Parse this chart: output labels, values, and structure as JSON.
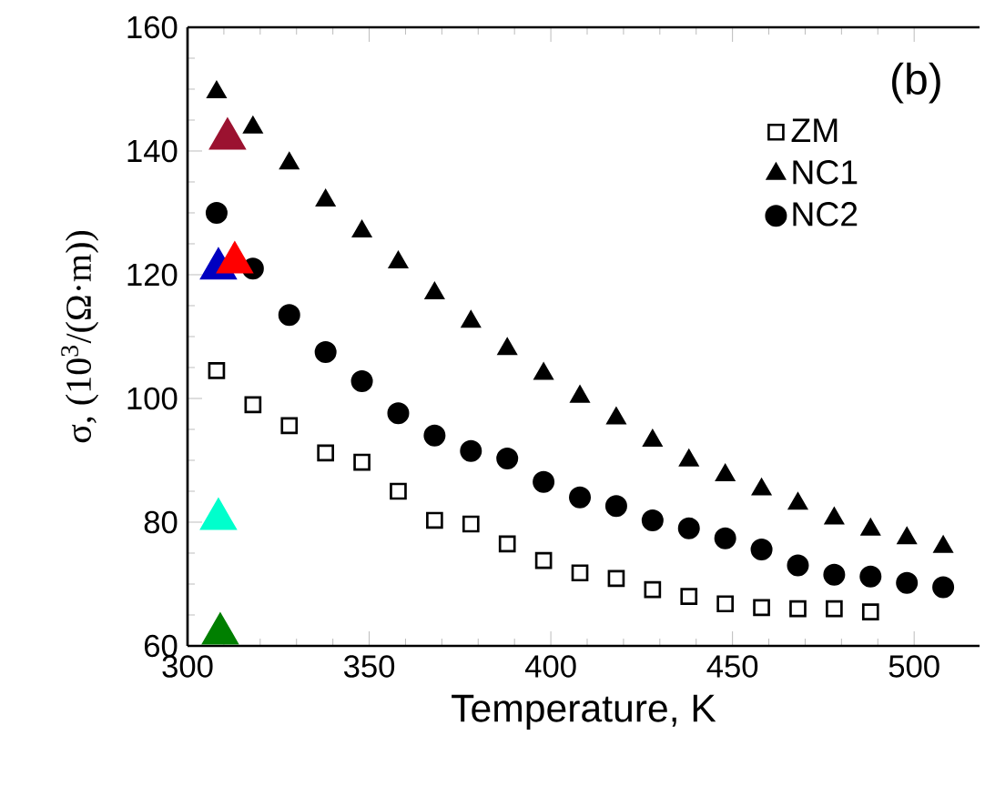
{
  "chart_data": {
    "type": "scatter",
    "xlabel": "Temperature,    K",
    "ylabel": "σ,   (10$^{3}$/(Ω·m))",
    "xlim": [
      300,
      518
    ],
    "ylim": [
      60,
      160
    ],
    "xticks": [
      300,
      350,
      400,
      450,
      500
    ],
    "yticks": [
      60,
      80,
      100,
      120,
      140,
      160
    ],
    "legend": "top right",
    "grid": false,
    "annotations": [
      "(b)"
    ],
    "series": [
      {
        "name": "ZM",
        "color": "#000000",
        "marker": "square",
        "x": [
          308,
          318,
          328,
          338,
          348,
          358,
          368,
          378,
          388,
          398,
          408,
          418,
          428,
          438,
          448,
          458,
          468,
          478,
          488
        ],
        "values": [
          104.5,
          99,
          95.6,
          91.2,
          89.7,
          85,
          80.3,
          79.7,
          76.5,
          73.8,
          71.8,
          70.9,
          69.1,
          68,
          66.8,
          66.2,
          66,
          66,
          65.5
        ]
      },
      {
        "name": "NC1",
        "color": "#000000",
        "marker": "triangle",
        "x": [
          308,
          318,
          328,
          338,
          348,
          358,
          368,
          378,
          388,
          398,
          408,
          418,
          428,
          438,
          448,
          458,
          468,
          478,
          488,
          498,
          508
        ],
        "values": [
          149.5,
          143.8,
          138,
          132,
          127,
          122,
          117,
          112.4,
          108,
          104,
          100.3,
          96.8,
          93.2,
          90,
          87.6,
          85.3,
          83,
          80.6,
          78.8,
          77.4,
          76
        ]
      },
      {
        "name": "NC2",
        "color": "#000000",
        "marker": "circle",
        "x": [
          308,
          318,
          328,
          338,
          348,
          358,
          368,
          378,
          388,
          398,
          408,
          418,
          428,
          438,
          448,
          458,
          468,
          478,
          488,
          498,
          508
        ],
        "values": [
          130,
          121,
          113.5,
          107.5,
          102.8,
          97.6,
          94,
          91.5,
          90.3,
          86.5,
          84,
          82.6,
          80.3,
          79,
          77.4,
          75.6,
          73,
          71.5,
          71.2,
          70.2,
          69.5
        ]
      },
      {
        "marker": "triangle",
        "colors": [
          "#9b1230",
          "#0000c0",
          "#ff0000",
          "#00ffcc",
          "#007f00"
        ],
        "x": [
          311,
          308.5,
          313,
          308.5,
          309
        ],
        "values": [
          142,
          121,
          122,
          80.5,
          62
        ]
      }
    ]
  }
}
